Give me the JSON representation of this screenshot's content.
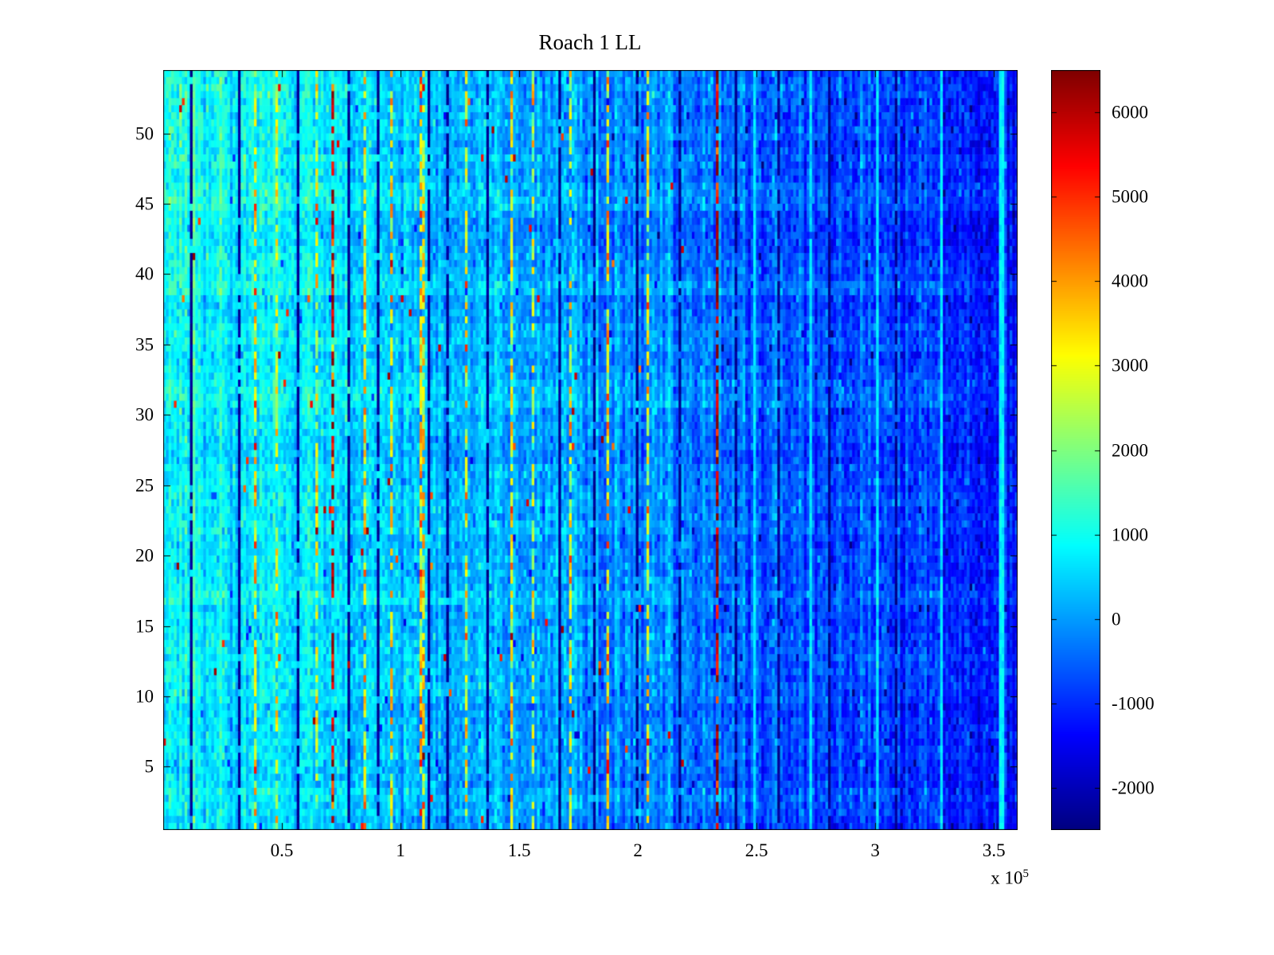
{
  "figure": {
    "background": "#ffffff",
    "axis_color": "#000000",
    "text_color": "#000000"
  },
  "chart_data": {
    "type": "heatmap",
    "title": "Roach 1 LL",
    "xlabel": "",
    "ylabel": "",
    "x_range": [
      0,
      360000
    ],
    "x_exponent": {
      "prefix": "x 10",
      "power": "5"
    },
    "y_range": [
      0.5,
      54.5
    ],
    "rows": 54,
    "xticks": {
      "values": [
        50000,
        100000,
        150000,
        200000,
        250000,
        300000,
        350000
      ],
      "labels": [
        "0.5",
        "1",
        "1.5",
        "2",
        "2.5",
        "3",
        "3.5"
      ]
    },
    "yticks": {
      "values": [
        5,
        10,
        15,
        20,
        25,
        30,
        35,
        40,
        45,
        50
      ],
      "labels": [
        "5",
        "10",
        "15",
        "20",
        "25",
        "30",
        "35",
        "40",
        "45",
        "50"
      ]
    },
    "colormap": "jet",
    "color_limits": [
      -2500,
      6500
    ],
    "colorbar": {
      "ticks": [
        6000,
        5000,
        4000,
        3000,
        2000,
        1000,
        0,
        -1000,
        -2000
      ],
      "labels": [
        "6000",
        "5000",
        "4000",
        "3000",
        "2000",
        "1000",
        "0",
        "-1000",
        "-2000"
      ]
    },
    "grid": false,
    "legend": "none",
    "summary": "Noisy trial-by-time heatmap: cyan (values ~500-1000) at left fading to blue (~ -1000) at right, with thin vertical hot (yellow/red) and dark (navy) stripes, light cyan stripes on the right side, and a warmer green-cyan patch in the upper-left rows.",
    "pattern": {
      "base_value_left": 850,
      "base_value_right": -1150,
      "base_exponent": 1.15,
      "column_noise_std": 260,
      "cell_noise_std": 320,
      "row_noise_std": 130,
      "warm_patch": {
        "y_min": 38,
        "x_frac_max": 0.34,
        "boost": 320
      },
      "dark_band": {
        "y_min": 40,
        "y_max": 43,
        "delta": -200
      },
      "hot_speckle_prob": 0.004,
      "stripes": [
        {
          "f": 0.03,
          "type": "dark",
          "v": -2300
        },
        {
          "f": 0.053,
          "type": "light",
          "v": 650
        },
        {
          "f": 0.089,
          "type": "dark",
          "v": -2300
        },
        {
          "f": 0.107,
          "type": "hot",
          "v": 3200
        },
        {
          "f": 0.13,
          "type": "hot",
          "v": 2800
        },
        {
          "f": 0.156,
          "type": "dark",
          "v": -2300
        },
        {
          "f": 0.177,
          "type": "hot",
          "v": 2600
        },
        {
          "f": 0.196,
          "type": "hot",
          "v": 5800
        },
        {
          "f": 0.216,
          "type": "dark",
          "v": -2300
        },
        {
          "f": 0.233,
          "type": "hot",
          "v": 3000
        },
        {
          "f": 0.249,
          "type": "dark",
          "v": -2300
        },
        {
          "f": 0.266,
          "type": "hot",
          "v": 3300
        },
        {
          "f": 0.3,
          "type": "hot",
          "v": 3400,
          "w": 2
        },
        {
          "f": 0.31,
          "type": "dark",
          "v": -2300
        },
        {
          "f": 0.331,
          "type": "dark",
          "v": -2300
        },
        {
          "f": 0.354,
          "type": "hot",
          "v": 3000
        },
        {
          "f": 0.379,
          "type": "dark",
          "v": -2300
        },
        {
          "f": 0.405,
          "type": "hot",
          "v": 3200
        },
        {
          "f": 0.432,
          "type": "hot",
          "v": 2700
        },
        {
          "f": 0.461,
          "type": "dark",
          "v": -2300
        },
        {
          "f": 0.475,
          "type": "hot",
          "v": 2900
        },
        {
          "f": 0.503,
          "type": "dark",
          "v": -2300
        },
        {
          "f": 0.519,
          "type": "hot",
          "v": 3300
        },
        {
          "f": 0.554,
          "type": "dark",
          "v": -2300
        },
        {
          "f": 0.566,
          "type": "hot",
          "v": 3100
        },
        {
          "f": 0.603,
          "type": "dark",
          "v": -2300
        },
        {
          "f": 0.648,
          "type": "hot",
          "v": 6200
        },
        {
          "f": 0.668,
          "type": "dark",
          "v": -2300
        },
        {
          "f": 0.69,
          "type": "light",
          "v": 650
        },
        {
          "f": 0.718,
          "type": "dark",
          "v": -2300
        },
        {
          "f": 0.755,
          "type": "light",
          "v": 650
        },
        {
          "f": 0.778,
          "type": "dark",
          "v": -2300
        },
        {
          "f": 0.834,
          "type": "light",
          "v": 700
        },
        {
          "f": 0.857,
          "type": "dark",
          "v": -2300
        },
        {
          "f": 0.909,
          "type": "light",
          "v": 700
        },
        {
          "f": 0.977,
          "type": "light",
          "v": 800,
          "w": 2
        }
      ]
    },
    "seed": 20140905
  }
}
